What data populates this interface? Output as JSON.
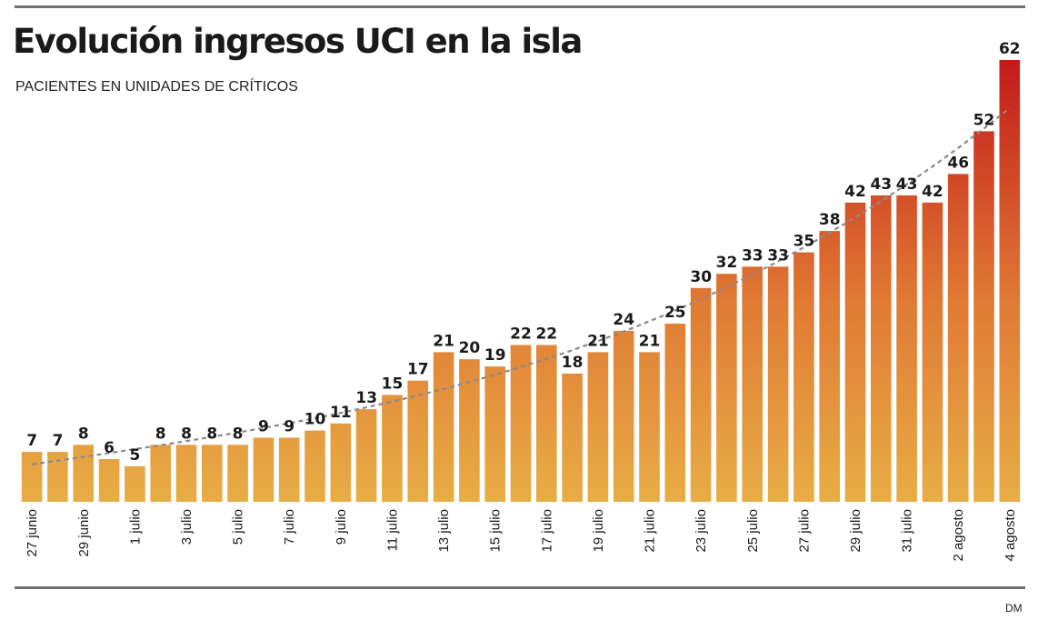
{
  "header": {
    "title": "Evolución ingresos UCI en la isla",
    "subtitle": "PACIENTES EN UNIDADES DE CRÍTICOS"
  },
  "footer": {
    "credit": "DM"
  },
  "chart_data": {
    "type": "bar",
    "values": [
      7,
      7,
      8,
      6,
      5,
      8,
      8,
      8,
      8,
      9,
      9,
      10,
      11,
      13,
      15,
      17,
      21,
      20,
      19,
      22,
      22,
      18,
      21,
      24,
      21,
      25,
      30,
      32,
      33,
      33,
      35,
      38,
      42,
      43,
      43,
      42,
      46,
      52,
      62
    ],
    "tick_labels": [
      "27 junio",
      "29 junio",
      "1 julio",
      "3 julio",
      "5 julio",
      "7 julio",
      "9 julio",
      "11 julio",
      "13 julio",
      "15 julio",
      "17 julio",
      "19 julio",
      "21 julio",
      "23 julio",
      "25 julio",
      "27 julio",
      "29 julio",
      "31 julio",
      "2 agosto",
      "4 agosto"
    ],
    "tick_every": 2,
    "ylim": [
      0,
      62
    ],
    "trendline": true,
    "colors": {
      "bar_low": "#e8ad45",
      "bar_high": "#c41a1a",
      "trend": "#8a8a8a",
      "label": "#1a1a1a"
    }
  }
}
